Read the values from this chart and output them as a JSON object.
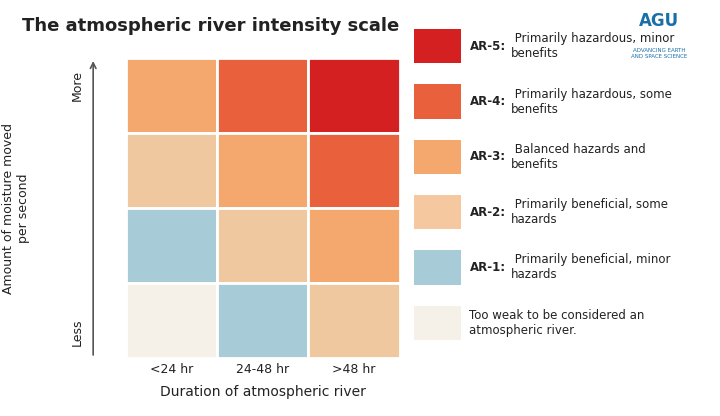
{
  "title": "The atmospheric river intensity scale",
  "xlabel": "Duration of atmospheric river",
  "ylabel": "Amount of moisture moved\nper second",
  "x_labels": [
    "<24 hr",
    "24-48 hr",
    ">48 hr"
  ],
  "y_label_less": "Less",
  "y_label_more": "More",
  "grid_colors": [
    [
      "#f5a86e",
      "#e8603c",
      "#d42020"
    ],
    [
      "#f0c8a0",
      "#f5a86e",
      "#e8603c"
    ],
    [
      "#a8ccd7",
      "#f0c8a0",
      "#f5a86e"
    ],
    [
      "#f5f0e8",
      "#a8ccd7",
      "#f0c8a0"
    ]
  ],
  "ar_colors": [
    "#d42020",
    "#e8603c",
    "#f5a86e",
    "#f5c8a0",
    "#a8ccd7",
    "#f5f0e8"
  ],
  "ar_bold_prefix": [
    "AR-5:",
    "AR-4:",
    "AR-3:",
    "AR-2:",
    "AR-1:",
    ""
  ],
  "ar_rest": [
    " Primarily hazardous, minor\nbenefits",
    " Primarily hazardous, some\nbenefits",
    " Balanced hazards and\nbenefits",
    " Primarily beneficial, some\nhazards",
    " Primarily beneficial, minor\nhazards",
    "Too weak to be considered an\natmospheric river."
  ],
  "background_color": "#ffffff",
  "text_color": "#222222",
  "axis_color": "#555555"
}
